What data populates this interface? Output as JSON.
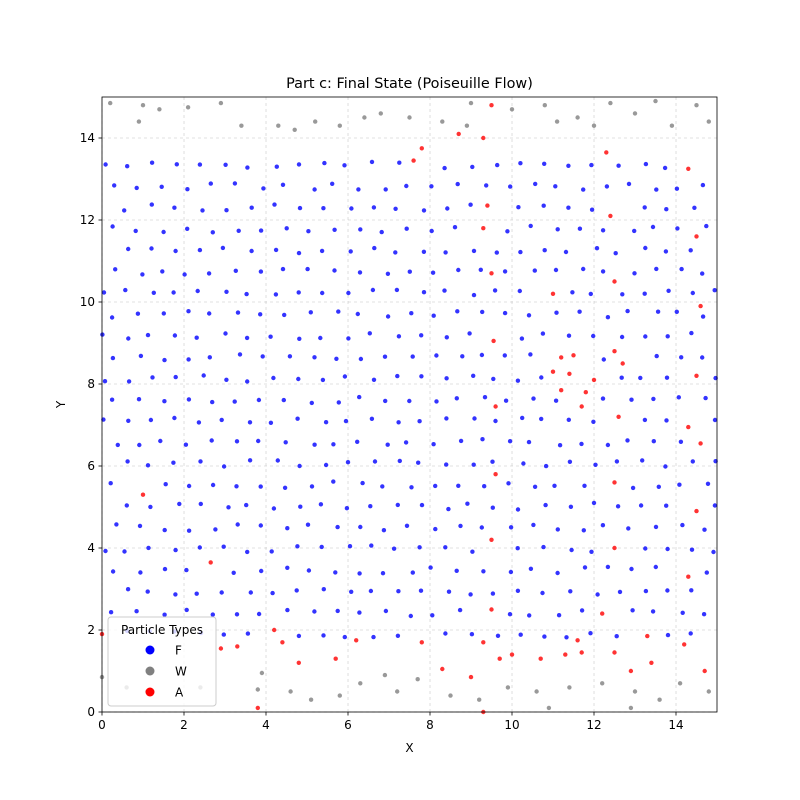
{
  "chart_data": {
    "type": "scatter",
    "title": "Part c: Final State (Poiseuille Flow)",
    "xlabel": "X",
    "ylabel": "Y",
    "xlim": [
      0,
      15
    ],
    "ylim": [
      0,
      15
    ],
    "xticks": [
      0,
      2,
      4,
      6,
      8,
      10,
      12,
      14
    ],
    "yticks": [
      0,
      2,
      4,
      6,
      8,
      10,
      12,
      14
    ],
    "grid": true,
    "legend": {
      "title": "Particle Types",
      "placement": "lower-left"
    },
    "point_alpha": 0.8,
    "series": [
      {
        "name": "F",
        "color": "#0000ff",
        "generated_lattice": {
          "x_spacing": 0.6,
          "y_spacing": 0.52,
          "y_range": [
            1.9,
            13.4
          ],
          "x_range": [
            0,
            15
          ],
          "row_offset": 0.3
        }
      },
      {
        "name": "W",
        "color": "#808080",
        "points": [
          [
            0.2,
            14.85
          ],
          [
            1.0,
            14.8
          ],
          [
            1.4,
            14.7
          ],
          [
            2.1,
            14.75
          ],
          [
            2.9,
            14.85
          ],
          [
            3.4,
            14.3
          ],
          [
            4.3,
            14.3
          ],
          [
            5.2,
            14.4
          ],
          [
            5.8,
            14.3
          ],
          [
            6.8,
            14.6
          ],
          [
            7.5,
            14.5
          ],
          [
            8.3,
            14.4
          ],
          [
            9.0,
            14.85
          ],
          [
            10.0,
            14.7
          ],
          [
            11.1,
            14.4
          ],
          [
            11.6,
            14.5
          ],
          [
            12.4,
            14.85
          ],
          [
            13.0,
            14.6
          ],
          [
            13.9,
            14.3
          ],
          [
            14.5,
            14.8
          ],
          [
            0.9,
            14.4
          ],
          [
            4.7,
            14.2
          ],
          [
            6.4,
            14.5
          ],
          [
            8.9,
            14.3
          ],
          [
            10.8,
            14.8
          ],
          [
            12.0,
            14.3
          ],
          [
            13.5,
            14.9
          ],
          [
            14.8,
            14.4
          ],
          [
            0.0,
            0.85
          ],
          [
            0.6,
            0.6
          ],
          [
            1.1,
            0.5
          ],
          [
            2.4,
            0.6
          ],
          [
            3.8,
            0.55
          ],
          [
            4.6,
            0.5
          ],
          [
            5.1,
            0.3
          ],
          [
            5.8,
            0.4
          ],
          [
            6.3,
            0.7
          ],
          [
            7.2,
            0.5
          ],
          [
            7.7,
            0.8
          ],
          [
            8.5,
            0.4
          ],
          [
            9.2,
            0.3
          ],
          [
            9.9,
            0.6
          ],
          [
            10.6,
            0.5
          ],
          [
            11.4,
            0.6
          ],
          [
            12.2,
            0.7
          ],
          [
            13.0,
            0.5
          ],
          [
            13.6,
            0.3
          ],
          [
            14.1,
            0.7
          ],
          [
            14.8,
            0.5
          ],
          [
            3.9,
            0.95
          ],
          [
            6.9,
            0.9
          ],
          [
            10.9,
            0.1
          ],
          [
            12.9,
            0.1
          ]
        ]
      },
      {
        "name": "A",
        "color": "#ff0000",
        "points": [
          [
            9.5,
            14.8
          ],
          [
            8.7,
            14.1
          ],
          [
            9.3,
            14.0
          ],
          [
            7.8,
            13.75
          ],
          [
            7.6,
            13.45
          ],
          [
            12.3,
            13.65
          ],
          [
            14.3,
            13.25
          ],
          [
            9.4,
            12.35
          ],
          [
            12.4,
            12.1
          ],
          [
            9.3,
            11.8
          ],
          [
            14.5,
            11.6
          ],
          [
            9.5,
            10.7
          ],
          [
            12.5,
            10.5
          ],
          [
            11.0,
            10.2
          ],
          [
            14.6,
            9.9
          ],
          [
            9.55,
            9.05
          ],
          [
            11.2,
            8.65
          ],
          [
            11.5,
            8.7
          ],
          [
            12.5,
            8.8
          ],
          [
            12.7,
            8.5
          ],
          [
            11.0,
            8.3
          ],
          [
            11.4,
            8.25
          ],
          [
            11.2,
            7.85
          ],
          [
            12.0,
            8.1
          ],
          [
            11.8,
            7.8
          ],
          [
            11.7,
            7.45
          ],
          [
            14.5,
            8.2
          ],
          [
            9.6,
            7.45
          ],
          [
            12.6,
            7.2
          ],
          [
            14.3,
            6.95
          ],
          [
            14.6,
            6.55
          ],
          [
            9.6,
            5.8
          ],
          [
            12.5,
            5.6
          ],
          [
            14.5,
            4.9
          ],
          [
            1.0,
            5.3
          ],
          [
            9.5,
            4.2
          ],
          [
            12.5,
            4.0
          ],
          [
            2.65,
            3.65
          ],
          [
            14.3,
            3.3
          ],
          [
            9.5,
            2.5
          ],
          [
            12.2,
            2.4
          ],
          [
            4.2,
            2.0
          ],
          [
            0.0,
            1.9
          ],
          [
            4.4,
            1.7
          ],
          [
            6.2,
            1.75
          ],
          [
            7.8,
            1.7
          ],
          [
            9.3,
            1.7
          ],
          [
            11.6,
            1.75
          ],
          [
            13.3,
            1.85
          ],
          [
            14.2,
            1.65
          ],
          [
            3.3,
            1.6
          ],
          [
            2.9,
            1.55
          ],
          [
            5.7,
            1.3
          ],
          [
            9.7,
            1.3
          ],
          [
            10.0,
            1.4
          ],
          [
            10.7,
            1.3
          ],
          [
            11.3,
            1.4
          ],
          [
            11.7,
            1.45
          ],
          [
            12.5,
            1.45
          ],
          [
            13.4,
            1.2
          ],
          [
            4.8,
            1.2
          ],
          [
            8.3,
            1.05
          ],
          [
            12.9,
            1.0
          ],
          [
            9.0,
            0.85
          ],
          [
            14.7,
            1.0
          ],
          [
            3.8,
            0.1
          ],
          [
            9.3,
            0.0
          ]
        ]
      }
    ]
  }
}
